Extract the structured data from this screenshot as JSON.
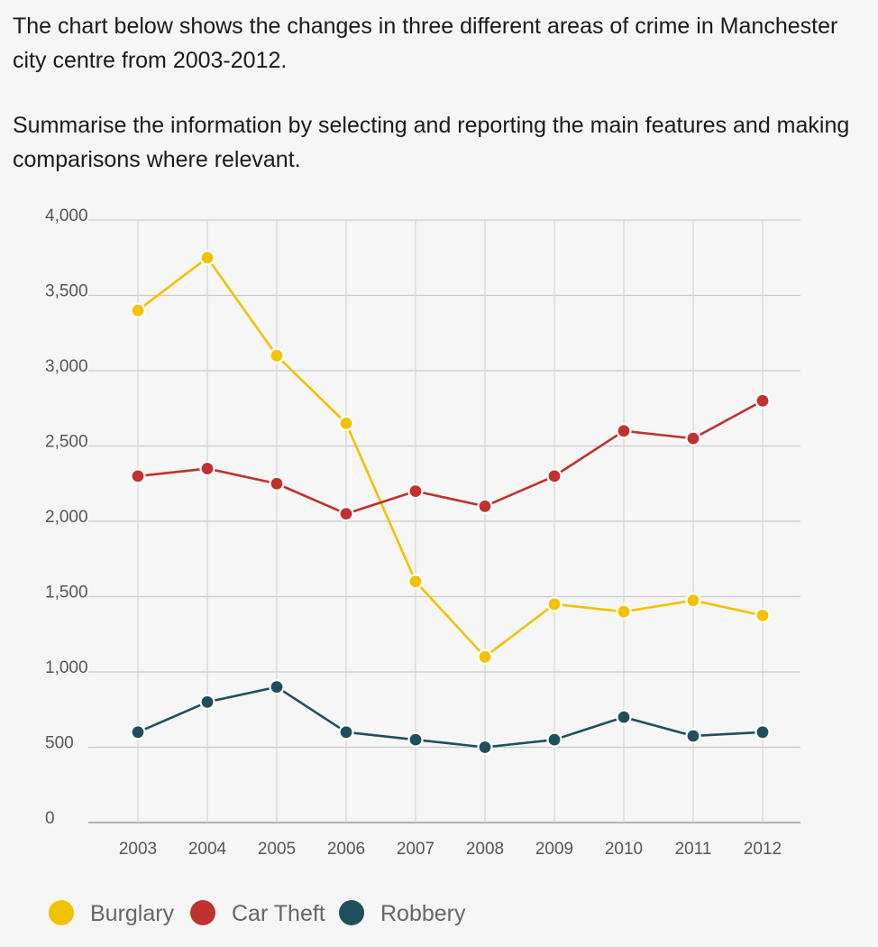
{
  "prompt": {
    "line1": "The chart below shows the changes in three different areas of crime in Manchester city centre from 2003-2012.",
    "line2": "Summarise the information by selecting and reporting the main features and making comparisons where relevant."
  },
  "chart_data": {
    "type": "line",
    "x": [
      2003,
      2004,
      2005,
      2006,
      2007,
      2008,
      2009,
      2010,
      2011,
      2012
    ],
    "x_tick_labels": [
      "2003",
      "2004",
      "2005",
      "2006",
      "2007",
      "2008",
      "2009",
      "2010",
      "2011",
      "2012"
    ],
    "y_ticks": [
      0,
      500,
      1000,
      1500,
      2000,
      2500,
      3000,
      3500,
      4000
    ],
    "y_tick_labels": [
      "0",
      "500",
      "1,000",
      "1,500",
      "2,000",
      "2,500",
      "3,000",
      "3,500",
      "4,000"
    ],
    "ylim": [
      0,
      4000
    ],
    "grid": true,
    "legend_position": "bottom-left",
    "series": [
      {
        "name": "Burglary",
        "color": "#f2c200",
        "values": [
          3400,
          3750,
          3100,
          2650,
          1600,
          1100,
          1450,
          1400,
          1475,
          1375
        ]
      },
      {
        "name": "Car Theft",
        "color": "#c0312f",
        "values": [
          2300,
          2350,
          2250,
          2050,
          2200,
          2100,
          2300,
          2600,
          2550,
          2800
        ]
      },
      {
        "name": "Robbery",
        "color": "#1f4f5c",
        "values": [
          600,
          800,
          900,
          600,
          550,
          500,
          550,
          700,
          575,
          600
        ]
      }
    ]
  }
}
